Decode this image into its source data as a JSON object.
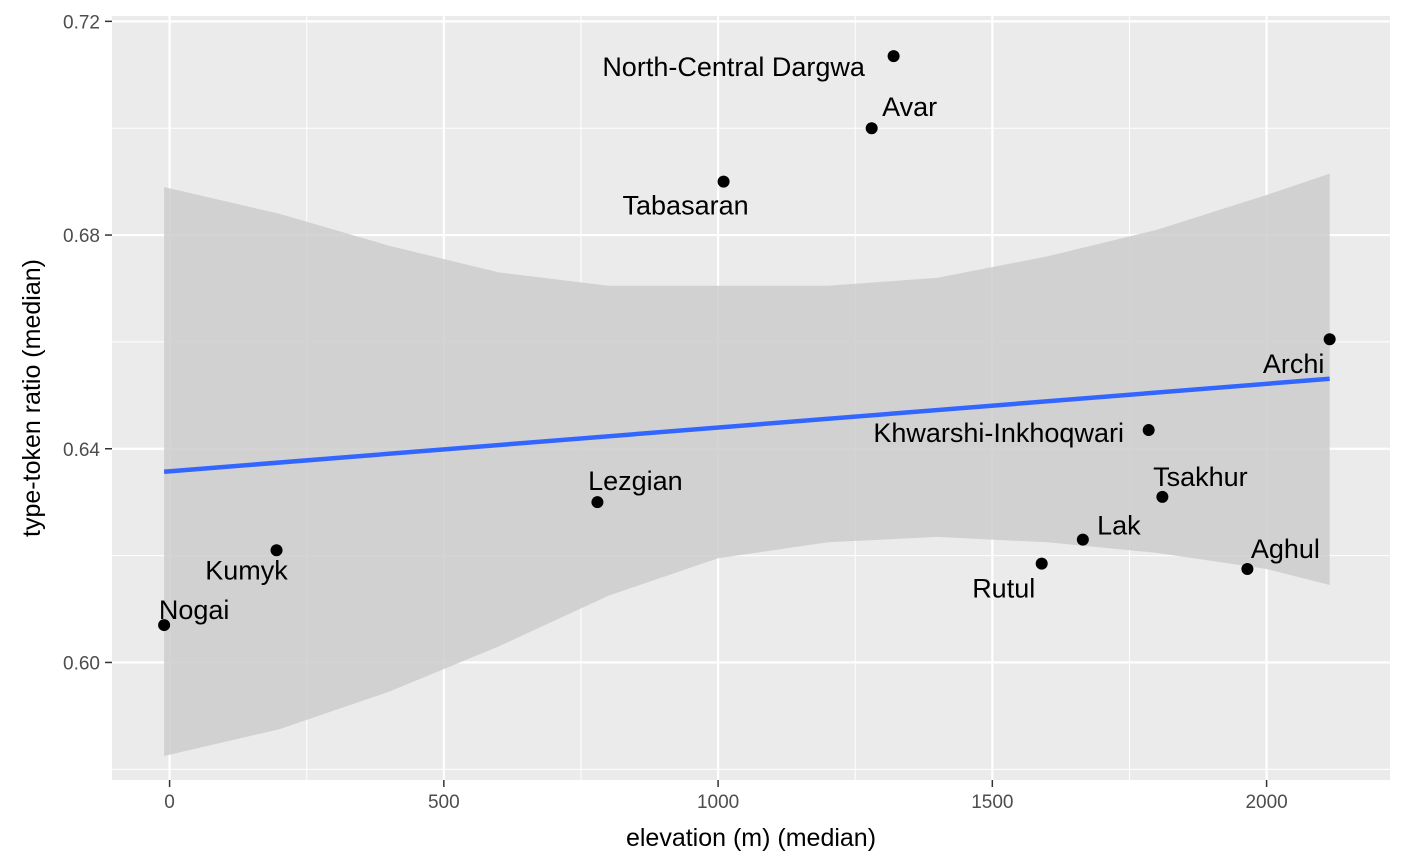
{
  "chart_data": {
    "type": "scatter",
    "xlabel": "elevation (m) (median)",
    "ylabel": "type-token ratio (median)",
    "xlim": [
      -105,
      2225
    ],
    "ylim": [
      0.578,
      0.721
    ],
    "x_ticks": [
      0,
      500,
      1000,
      1500,
      2000
    ],
    "x_tick_labels": [
      "0",
      "500",
      "1000",
      "1500",
      "2000"
    ],
    "y_ticks": [
      0.6,
      0.64,
      0.68,
      0.72
    ],
    "y_tick_labels": [
      "0.60",
      "0.64",
      "0.68",
      "0.72"
    ],
    "grid": true,
    "points": [
      {
        "label": "Nogai",
        "x": -10,
        "y": 0.607
      },
      {
        "label": "Kumyk",
        "x": 195,
        "y": 0.621
      },
      {
        "label": "Lezgian",
        "x": 780,
        "y": 0.63
      },
      {
        "label": "Tabasaran",
        "x": 1010,
        "y": 0.69
      },
      {
        "label": "Avar",
        "x": 1280,
        "y": 0.7
      },
      {
        "label": "North-Central Dargwa",
        "x": 1320,
        "y": 0.7135
      },
      {
        "label": "Rutul",
        "x": 1590,
        "y": 0.6185
      },
      {
        "label": "Lak",
        "x": 1665,
        "y": 0.623
      },
      {
        "label": "Khwarshi-Inkhoqwari",
        "x": 1785,
        "y": 0.6435
      },
      {
        "label": "Tsakhur",
        "x": 1810,
        "y": 0.631
      },
      {
        "label": "Aghul",
        "x": 1965,
        "y": 0.6175
      },
      {
        "label": "Archi",
        "x": 2115,
        "y": 0.6605
      }
    ],
    "trend_line": {
      "method": "linear",
      "x": [
        -10,
        2115
      ],
      "y": [
        0.6357,
        0.6531
      ],
      "color": "#3366FF"
    },
    "confidence_band": {
      "x": [
        -10,
        200,
        400,
        600,
        800,
        1000,
        1200,
        1400,
        1600,
        1800,
        2000,
        2115
      ],
      "upper": [
        0.689,
        0.684,
        0.678,
        0.673,
        0.6705,
        0.6705,
        0.6705,
        0.672,
        0.676,
        0.681,
        0.6875,
        0.6915
      ],
      "lower": [
        0.5825,
        0.5875,
        0.5945,
        0.603,
        0.6125,
        0.6195,
        0.6225,
        0.6235,
        0.6225,
        0.6205,
        0.6175,
        0.6145
      ]
    },
    "colors": {
      "panel": "#EBEBEB",
      "grid": "#FFFFFF",
      "band": "#CCCCCC",
      "line": "#3366FF",
      "point": "#000000"
    }
  }
}
